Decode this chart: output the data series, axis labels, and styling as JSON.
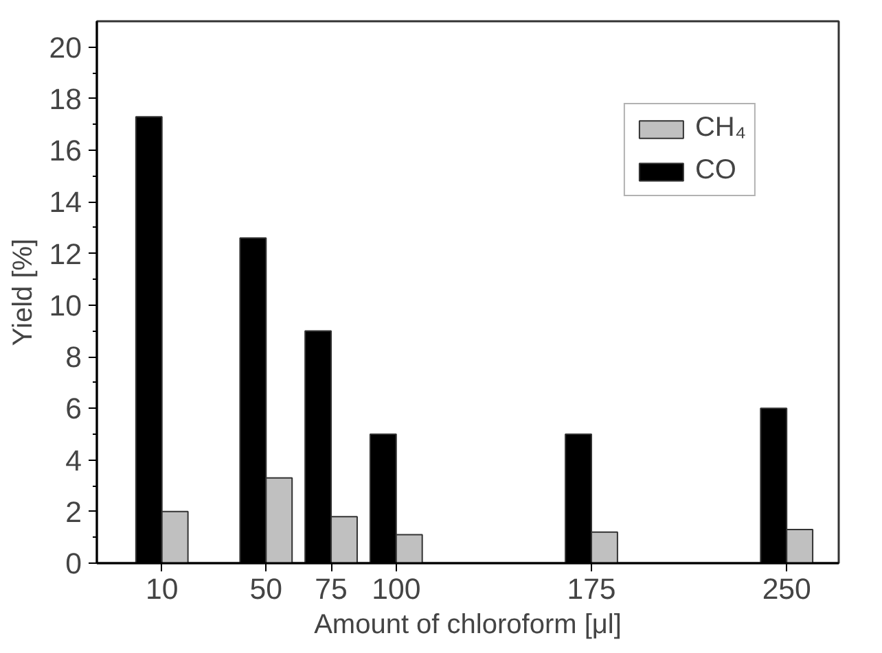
{
  "chart_data": {
    "type": "bar",
    "xlabel": "Amount of chloroform [μl]",
    "ylabel": "Yield [%]",
    "x": [
      10,
      50,
      75,
      100,
      175,
      250
    ],
    "series": [
      {
        "name": "CO",
        "color": "#000000",
        "values": [
          17.3,
          12.6,
          9.0,
          5.0,
          5.0,
          6.0
        ]
      },
      {
        "name": "CH₄",
        "color": "#c0c0c0",
        "values": [
          2.0,
          3.3,
          1.8,
          1.1,
          1.2,
          1.3
        ]
      }
    ],
    "xlim": [
      -15,
      270
    ],
    "xticks": [
      10,
      50,
      75,
      100,
      175,
      250
    ],
    "ylim": [
      0,
      21
    ],
    "yticks": [
      0,
      2,
      4,
      6,
      8,
      10,
      12,
      14,
      16,
      18,
      20
    ],
    "grid": false,
    "legend": "top right"
  }
}
